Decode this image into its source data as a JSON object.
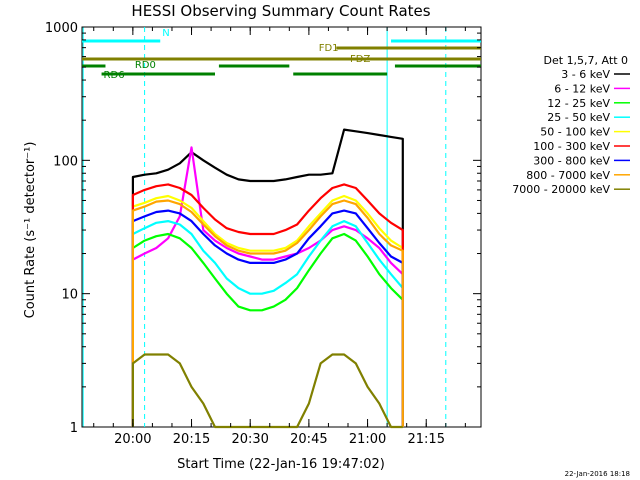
{
  "chart_data": {
    "type": "line",
    "title": "HESSI Observing Summary Count Rates",
    "xlabel": "Start Time (22-Jan-16 19:47:02)",
    "ylabel": "Count Rate (s⁻¹ detector⁻¹)",
    "y_scale": "log",
    "ylim": [
      1,
      1000
    ],
    "xlim": [
      "19:47",
      "21:29"
    ],
    "x_ticks": [
      "20:00",
      "20:15",
      "20:30",
      "20:45",
      "21:00",
      "21:15"
    ],
    "y_ticks": [
      "1",
      "10",
      "100",
      "1000"
    ],
    "legend_header": "Det 1,5,7, Att 0",
    "legend_position": "right",
    "x": [
      "20:00",
      "20:03",
      "20:06",
      "20:09",
      "20:12",
      "20:15",
      "20:18",
      "20:21",
      "20:24",
      "20:27",
      "20:30",
      "20:33",
      "20:36",
      "20:39",
      "20:42",
      "20:45",
      "20:48",
      "20:51",
      "20:54",
      "20:57",
      "21:00",
      "21:03",
      "21:06",
      "21:09"
    ],
    "series": [
      {
        "name": "3 - 6 keV",
        "color": "#000000",
        "values": [
          75,
          78,
          80,
          85,
          95,
          115,
          100,
          88,
          78,
          72,
          70,
          70,
          70,
          72,
          75,
          78,
          78,
          80,
          170,
          165,
          160,
          155,
          150,
          145
        ]
      },
      {
        "name": "6 - 12 keV",
        "color": "#ff00ff",
        "values": [
          18,
          20,
          22,
          26,
          38,
          125,
          30,
          25,
          22,
          20,
          19,
          18,
          18,
          19,
          20,
          22,
          25,
          30,
          32,
          30,
          26,
          22,
          17,
          14
        ]
      },
      {
        "name": "12 - 25 keV",
        "color": "#00ff00",
        "values": [
          22,
          25,
          27,
          28,
          26,
          22,
          17,
          13,
          10,
          8,
          7.5,
          7.5,
          8,
          9,
          11,
          15,
          20,
          26,
          28,
          25,
          19,
          14,
          11,
          9
        ]
      },
      {
        "name": "25 - 50 keV",
        "color": "#00ffff",
        "values": [
          28,
          31,
          34,
          35,
          33,
          28,
          21,
          17,
          13,
          11,
          10,
          10,
          10.5,
          12,
          14,
          19,
          25,
          32,
          35,
          32,
          24,
          18,
          14,
          11
        ]
      },
      {
        "name": "50 - 100 keV",
        "color": "#ffff00",
        "values": [
          45,
          48,
          52,
          54,
          50,
          44,
          35,
          28,
          24,
          22,
          21,
          21,
          21,
          22,
          25,
          32,
          40,
          50,
          54,
          50,
          40,
          31,
          25,
          22
        ]
      },
      {
        "name": "100 - 300 keV",
        "color": "#ff0000",
        "values": [
          55,
          60,
          64,
          66,
          62,
          55,
          44,
          36,
          31,
          29,
          28,
          28,
          28,
          30,
          33,
          42,
          52,
          62,
          66,
          62,
          50,
          40,
          34,
          30
        ]
      },
      {
        "name": "300 - 800 keV",
        "color": "#0000ff",
        "values": [
          35,
          38,
          41,
          42,
          40,
          35,
          28,
          23,
          20,
          18,
          17,
          17,
          17,
          18,
          20,
          26,
          32,
          40,
          42,
          40,
          31,
          24,
          19,
          17
        ]
      },
      {
        "name": "800 - 7000 keV",
        "color": "#ffa500",
        "values": [
          42,
          45,
          49,
          50,
          47,
          41,
          33,
          27,
          23,
          21,
          20,
          20,
          20,
          21,
          24,
          30,
          38,
          47,
          50,
          47,
          37,
          28,
          23,
          21
        ]
      },
      {
        "name": "7000 - 20000 keV",
        "color": "#808000",
        "values": [
          3,
          3.5,
          3.5,
          3.5,
          3,
          2,
          1.5,
          1,
          1,
          1,
          1,
          1,
          1,
          1,
          1,
          1.5,
          3,
          3.5,
          3.5,
          3,
          2,
          1.5,
          1,
          1
        ]
      }
    ],
    "state_bars": [
      {
        "label": "N",
        "color": "#00ffff"
      },
      {
        "label": "FD1",
        "color": "#808000"
      },
      {
        "label": "FDZ",
        "color": "#808000"
      },
      {
        "label": "RD0",
        "color": "#008000"
      },
      {
        "label": "RD6",
        "color": "#008000"
      }
    ],
    "grid": false
  },
  "stamp": "22-Jan-2016 18:18"
}
